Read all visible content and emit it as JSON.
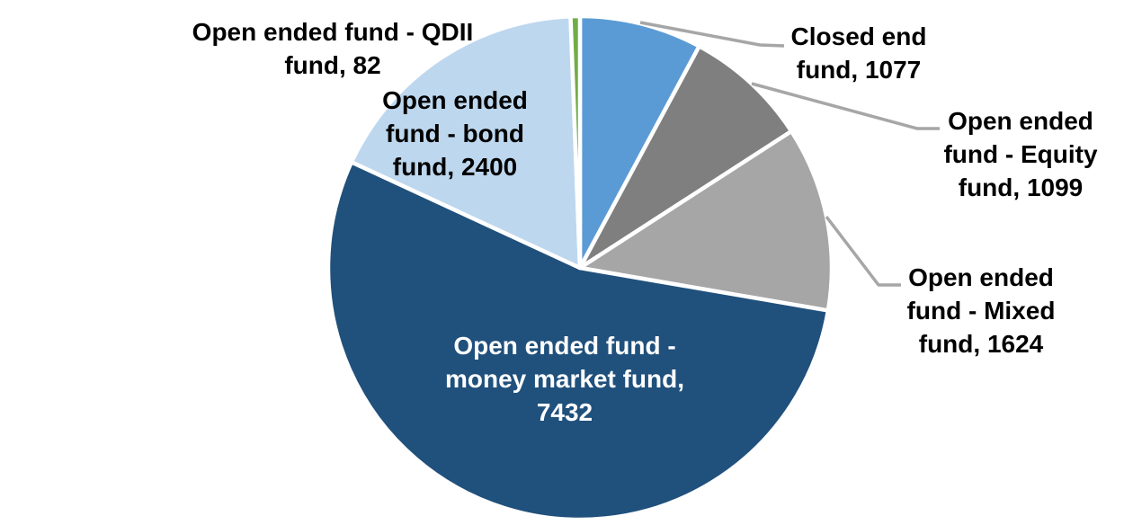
{
  "chart_data": {
    "type": "pie",
    "title": "",
    "legend": "none",
    "background": "#FFFFFF",
    "leader_line_color": "#A6A6A6",
    "label_format": "category, value",
    "start_angle_deg": 0,
    "direction": "clockwise",
    "slices": [
      {
        "label": "Closed end fund",
        "value": 1077,
        "color": "#5B9BD5",
        "label_color": "#000000",
        "label_position": "outside-right",
        "label_lines": [
          "Closed end",
          "fund, 1077"
        ]
      },
      {
        "label": "Open ended fund - Equity fund",
        "value": 1099,
        "color": "#7F7F7F",
        "label_color": "#000000",
        "label_position": "outside-right",
        "label_lines": [
          "Open ended",
          "fund - Equity",
          "fund, 1099"
        ]
      },
      {
        "label": "Open ended fund - Mixed fund",
        "value": 1624,
        "color": "#A6A6A6",
        "label_color": "#000000",
        "label_position": "outside-right",
        "label_lines": [
          "Open ended",
          "fund - Mixed",
          "fund, 1624"
        ]
      },
      {
        "label": "Open ended fund - money market fund",
        "value": 7432,
        "color": "#20507C",
        "label_color": "#FFFFFF",
        "label_position": "inside",
        "label_lines": [
          "Open ended fund -",
          "money market fund,",
          "7432"
        ]
      },
      {
        "label": "Open ended fund - bond fund",
        "value": 2400,
        "color": "#BDD7EE",
        "label_color": "#000000",
        "label_position": "inside-top-left",
        "label_lines": [
          "Open ended",
          "fund - bond",
          "fund, 2400"
        ]
      },
      {
        "label": "Open ended fund - QDII fund",
        "value": 82,
        "color": "#70AD47",
        "label_color": "#000000",
        "label_position": "outside-top-left",
        "label_lines": [
          "Open ended fund - QDII",
          "fund, 82"
        ]
      }
    ]
  }
}
